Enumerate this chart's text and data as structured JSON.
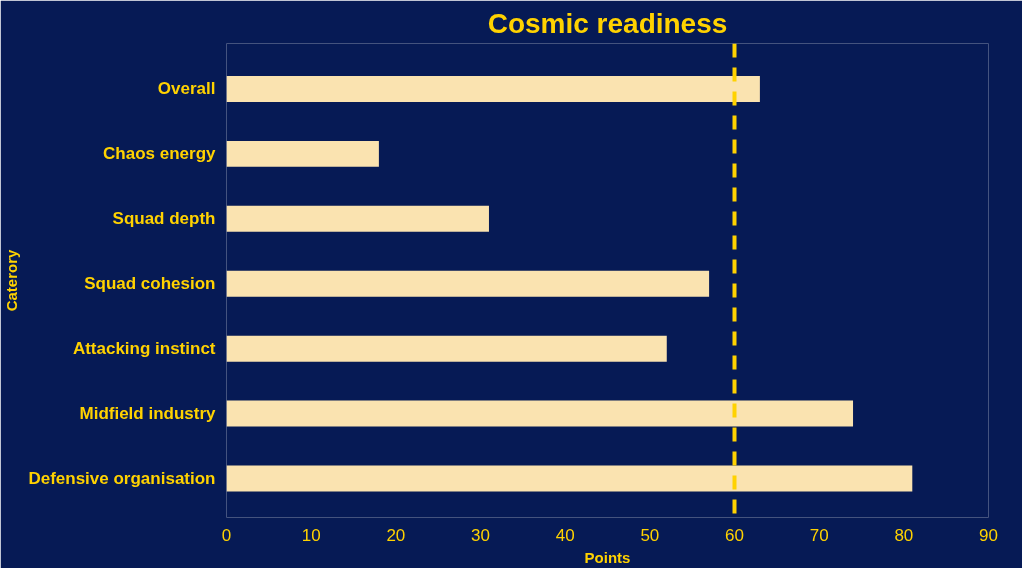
{
  "chart_data": {
    "type": "bar",
    "orientation": "horizontal",
    "title": "Cosmic readiness",
    "xlabel": "Points",
    "ylabel": "Caterory",
    "categories": [
      "Overall",
      "Chaos energy",
      "Squad depth",
      "Squad cohesion",
      "Attacking instinct",
      "Midfield industry",
      "Defensive organisation"
    ],
    "values": [
      63,
      18,
      31,
      57,
      52,
      74,
      81
    ],
    "color": "#fae3b0",
    "xlim": [
      0,
      90
    ],
    "xticks": [
      0,
      10,
      20,
      30,
      40,
      50,
      60,
      70,
      80,
      90
    ],
    "grid": false,
    "ref_lines": [
      {
        "axis": "x",
        "value": 60,
        "color": "#ffd200",
        "line_style": "dashed"
      }
    ]
  }
}
